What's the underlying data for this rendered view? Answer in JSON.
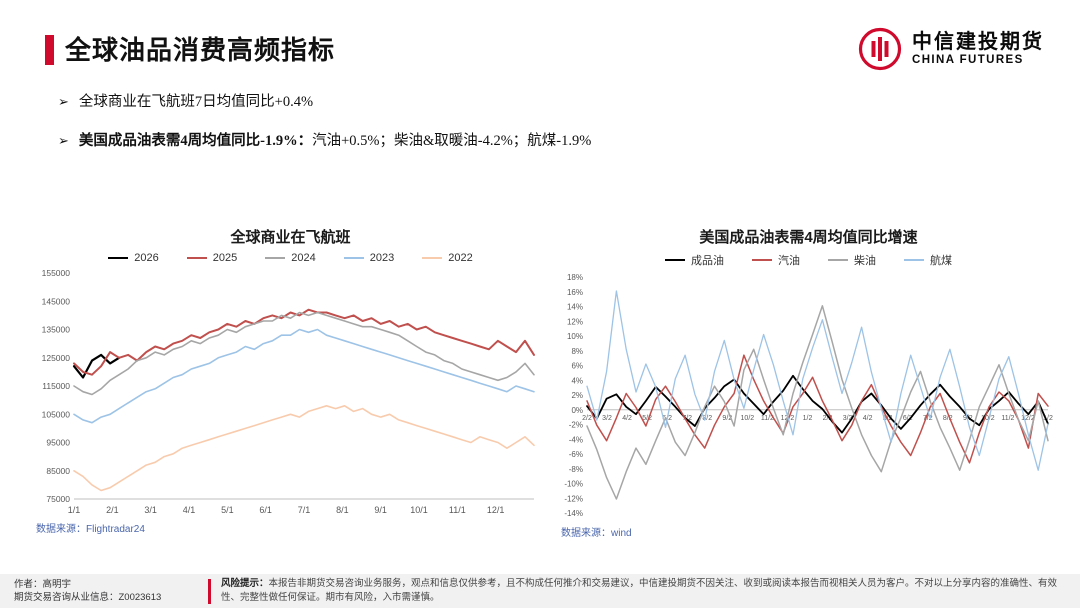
{
  "header": {
    "title": "全球油品消费高频指标",
    "accent_color": "#cf0a2c",
    "logo": {
      "cn": "中信建投期货",
      "en": "CHINA FUTURES"
    }
  },
  "bullets": [
    {
      "marker": "➢",
      "text": "全球商业在飞航班7日均值同比+0.4%"
    },
    {
      "marker": "➢",
      "bold": "美国成品油表需4周均值同比-1.9%：",
      "rest": "汽油+0.5%；柴油&取暖油-4.2%；航煤-1.9%"
    }
  ],
  "sources": {
    "left": "数据来源：Flightradar24",
    "right": "数据来源：wind"
  },
  "footer": {
    "author_line1": "作者：高明宇",
    "author_line2": "期货交易咨询从业信息：Z0023613",
    "risk_bold": "风险提示：",
    "risk_text": "本报告非期货交易咨询业务服务，观点和信息仅供参考，且不构成任何推介和交易建议，中信建投期货不因关注、收到或阅读本报告而视相关人员为客户。不对以上分享内容的准确性、有效性、完整性做任何保证。期市有风险，入市需谨慎。"
  },
  "chart_data": [
    {
      "type": "line",
      "title": "全球商业在飞航班",
      "xlabel": "",
      "ylabel": "",
      "ylim": [
        75000,
        155000
      ],
      "y_tick_step": 10000,
      "y_format": "plain",
      "grid": false,
      "legend_position": "top",
      "x_labels": [
        "1/1",
        "2/1",
        "3/1",
        "4/1",
        "5/1",
        "6/1",
        "7/1",
        "8/1",
        "9/1",
        "10/1",
        "11/1",
        "12/1"
      ],
      "series": [
        {
          "name": "2026",
          "color": "#000000",
          "w": 2.2,
          "values": [
            122000,
            118000,
            124000,
            126000,
            123000,
            125000
          ]
        },
        {
          "name": "2025",
          "color": "#c0504d",
          "w": 2,
          "values": [
            123000,
            120000,
            119000,
            122000,
            127000,
            125000,
            126000,
            124000,
            127000,
            129000,
            128000,
            130000,
            131000,
            133000,
            132000,
            134000,
            135000,
            137000,
            136000,
            138000,
            137000,
            139000,
            140000,
            139000,
            141000,
            140000,
            142000,
            141000,
            141000,
            140000,
            139000,
            140000,
            138000,
            139000,
            137000,
            138000,
            136000,
            137000,
            135000,
            136000,
            134000,
            133000,
            132000,
            131000,
            130000,
            129000,
            128000,
            131000,
            129000,
            127000,
            131000,
            126000
          ]
        },
        {
          "name": "2024",
          "color": "#a6a6a6",
          "w": 1.6,
          "values": [
            115000,
            113000,
            112000,
            114000,
            117000,
            119000,
            121000,
            124000,
            125000,
            127000,
            126000,
            128000,
            129000,
            131000,
            130000,
            132000,
            133000,
            135000,
            134000,
            136000,
            137000,
            138000,
            138000,
            140000,
            139000,
            141000,
            140000,
            141000,
            140000,
            139000,
            138000,
            137000,
            136000,
            136000,
            135000,
            134000,
            133000,
            131000,
            129000,
            127000,
            126000,
            124000,
            123000,
            121000,
            120000,
            119000,
            118000,
            117000,
            118000,
            120000,
            123000,
            119000
          ]
        },
        {
          "name": "2023",
          "color": "#9dc3e6",
          "w": 1.6,
          "values": [
            105000,
            103000,
            102000,
            104000,
            105000,
            107000,
            109000,
            111000,
            113000,
            114000,
            116000,
            118000,
            119000,
            121000,
            122000,
            123000,
            125000,
            126000,
            127000,
            129000,
            128000,
            130000,
            131000,
            133000,
            133000,
            135000,
            134000,
            135000,
            133000,
            132000,
            131000,
            130000,
            129000,
            128000,
            127000,
            126000,
            125000,
            124000,
            123000,
            122000,
            121000,
            120000,
            119000,
            118000,
            117000,
            116000,
            115000,
            114000,
            113000,
            115000,
            114000,
            113000
          ]
        },
        {
          "name": "2022",
          "color": "#f8cbad",
          "w": 1.6,
          "values": [
            85000,
            83000,
            80000,
            78000,
            79000,
            81000,
            83000,
            85000,
            87000,
            88000,
            90000,
            91000,
            93000,
            94000,
            95000,
            96000,
            97000,
            98000,
            99000,
            100000,
            101000,
            102000,
            103000,
            104000,
            105000,
            104000,
            106000,
            107000,
            108000,
            107000,
            108000,
            106000,
            107000,
            105000,
            104000,
            105000,
            103000,
            102000,
            101000,
            100000,
            99000,
            98000,
            97000,
            96000,
            95000,
            97000,
            96000,
            95000,
            93000,
            95000,
            97000,
            94000
          ]
        }
      ]
    },
    {
      "type": "line",
      "title": "美国成品油表需4周均值同比增速",
      "xlabel": "",
      "ylabel": "",
      "ylim": [
        -14,
        18
      ],
      "y_tick_step": 2,
      "y_format": "percent",
      "grid": false,
      "legend_position": "top",
      "x_labels": [
        "2/2",
        "3/2",
        "4/2",
        "5/2",
        "6/2",
        "7/2",
        "8/2",
        "9/2",
        "10/2",
        "11/2",
        "12/2",
        "1/2",
        "2/2",
        "3/2",
        "4/2",
        "5/2",
        "6/2",
        "7/2",
        "8/2",
        "9/2",
        "10/2",
        "11/2",
        "12/2",
        "1/2"
      ],
      "series": [
        {
          "name": "成品油",
          "color": "#000000",
          "w": 1.8,
          "values": [
            0.5,
            -1.2,
            1.5,
            2.1,
            0.4,
            -0.6,
            1.2,
            3.1,
            1.8,
            0.4,
            -1.1,
            -2.2,
            0.2,
            1.6,
            3.2,
            4.1,
            2.2,
            0.8,
            -0.6,
            1.1,
            2.6,
            4.6,
            2.8,
            1.2,
            0.1,
            -1.6,
            -3.1,
            -1.2,
            1.1,
            2.2,
            0.6,
            -1.2,
            -2.6,
            -1.1,
            0.6,
            2.1,
            3.4,
            1.8,
            0.4,
            -1.2,
            -2.1,
            0.1,
            1.2,
            2.4,
            0.8,
            -0.6,
            1.1,
            -1.9
          ]
        },
        {
          "name": "汽油",
          "color": "#c0504d",
          "w": 1.5,
          "values": [
            1.2,
            -2.1,
            -4.2,
            -1.1,
            2.2,
            0.3,
            -2.2,
            1.4,
            3.2,
            1.1,
            -1.2,
            -3.4,
            -5.2,
            -2.1,
            0.4,
            2.2,
            7.4,
            4.1,
            1.2,
            -1.1,
            -3.2,
            0.4,
            2.2,
            4.4,
            1.2,
            -1.4,
            -4.2,
            -2.1,
            1.2,
            3.4,
            0.4,
            -2.2,
            -4.4,
            -6.2,
            -3.1,
            0.4,
            2.2,
            -1.2,
            -4.4,
            -7.2,
            -3.1,
            0.4,
            2.4,
            1.2,
            -1.4,
            -5.2,
            2.2,
            0.5
          ]
        },
        {
          "name": "柴油",
          "color": "#a6a6a6",
          "w": 1.5,
          "values": [
            -2.2,
            -5.4,
            -9.2,
            -12.1,
            -8.4,
            -5.2,
            -7.4,
            -4.2,
            -1.1,
            -4.4,
            -6.2,
            -3.1,
            0.4,
            3.2,
            1.1,
            -2.2,
            5.4,
            8.2,
            4.1,
            0.2,
            -3.4,
            2.2,
            6.4,
            10.2,
            14.1,
            9.2,
            4.1,
            0.2,
            -3.4,
            -6.2,
            -8.4,
            -4.2,
            -1.1,
            2.4,
            5.2,
            1.1,
            -2.4,
            -5.2,
            -8.2,
            -4.1,
            0.4,
            3.2,
            6.1,
            2.2,
            -1.4,
            -4.2,
            1.2,
            -4.2
          ]
        },
        {
          "name": "航煤",
          "color": "#9dc3e6",
          "w": 1.3,
          "values": [
            3.2,
            -1.4,
            5.2,
            16.1,
            8.2,
            2.4,
            6.2,
            3.1,
            -2.4,
            4.2,
            7.4,
            2.1,
            -1.4,
            5.2,
            9.4,
            4.1,
            0.2,
            5.4,
            10.2,
            6.1,
            1.2,
            -3.4,
            4.2,
            8.4,
            12.2,
            7.1,
            2.2,
            6.4,
            11.2,
            5.1,
            0.2,
            -4.4,
            2.2,
            7.4,
            3.1,
            -1.2,
            4.4,
            8.2,
            3.1,
            -2.4,
            -6.2,
            -1.1,
            4.2,
            7.2,
            2.1,
            -3.4,
            -8.2,
            -1.9
          ]
        }
      ]
    }
  ]
}
